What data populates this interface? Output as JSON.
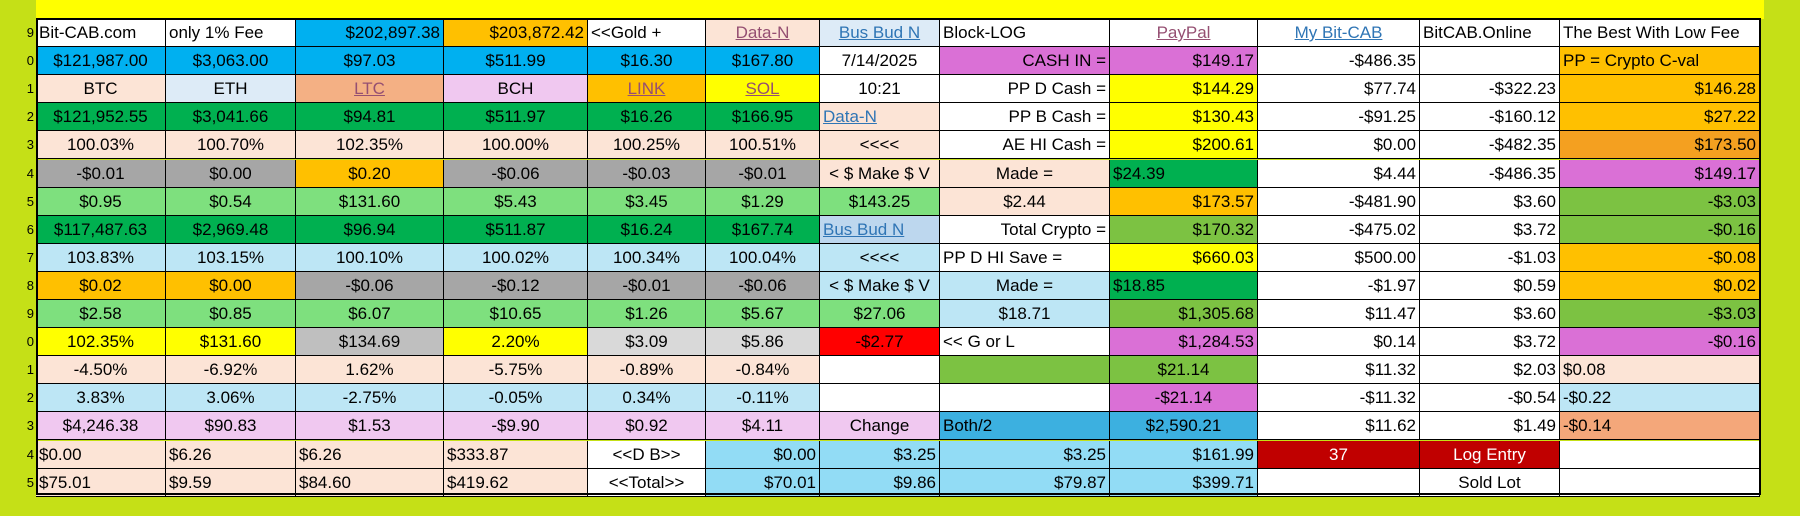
{
  "spreadsheet": {
    "row_numbers": [
      "9",
      "0",
      "1",
      "2",
      "3",
      "4",
      "5",
      "6",
      "7",
      "8",
      "9",
      "0",
      "1",
      "2",
      "3",
      "4",
      "5"
    ],
    "rows": [
      [
        {
          "t": "Bit-CAB.com",
          "bg": "#ffffff",
          "a": "l"
        },
        {
          "t": "only 1% Fee",
          "bg": "#ffffff",
          "a": "l"
        },
        {
          "t": "$202,897.38",
          "bg": "#00b0f0",
          "a": "r"
        },
        {
          "t": "$203,872.42",
          "bg": "#ffc000",
          "a": "r"
        },
        {
          "t": "<<Gold +",
          "bg": "#ffffff",
          "a": "l"
        },
        {
          "t": "Data-N",
          "bg": "#fce4d6",
          "a": "c",
          "fg": "#954f72",
          "link": true
        },
        {
          "t": "Bus Bud N",
          "bg": "#ddebf7",
          "a": "c",
          "fg": "#2f75b5",
          "link": true
        },
        {
          "t": "Block-LOG",
          "bg": "#ffffff",
          "a": "l"
        },
        {
          "t": "PayPal",
          "bg": "#ffffff",
          "a": "c",
          "fg": "#954f72",
          "link": true
        },
        {
          "t": "My Bit-CAB",
          "bg": "#ffffff",
          "a": "c",
          "fg": "#2f75b5",
          "link": true
        },
        {
          "t": "BitCAB.Online",
          "bg": "#ffffff",
          "a": "l"
        },
        {
          "t": "The Best With Low Fee",
          "bg": "#ffffff",
          "a": "l"
        }
      ],
      [
        {
          "t": "$121,987.00",
          "bg": "#00b0f0",
          "a": "c"
        },
        {
          "t": "$3,063.00",
          "bg": "#00b0f0",
          "a": "c"
        },
        {
          "t": "$97.03",
          "bg": "#00b0f0",
          "a": "c"
        },
        {
          "t": "$511.99",
          "bg": "#00b0f0",
          "a": "c"
        },
        {
          "t": "$16.30",
          "bg": "#00b0f0",
          "a": "c"
        },
        {
          "t": "$167.80",
          "bg": "#00b0f0",
          "a": "c"
        },
        {
          "t": "7/14/2025",
          "bg": "#ffffff",
          "a": "c"
        },
        {
          "t": "CASH IN =",
          "bg": "#da70d6",
          "a": "r"
        },
        {
          "t": "$149.17",
          "bg": "#da70d6",
          "a": "r"
        },
        {
          "t": "-$486.35",
          "bg": "#ffffff",
          "a": "r"
        },
        {
          "t": "",
          "bg": "#ffffff",
          "a": "r"
        },
        {
          "t": "PP = Crypto C-val",
          "bg": "#ffc000",
          "a": "l"
        }
      ],
      [
        {
          "t": "BTC",
          "bg": "#fce4d6",
          "a": "c"
        },
        {
          "t": "ETH",
          "bg": "#ddebf7",
          "a": "c"
        },
        {
          "t": "LTC",
          "bg": "#f4b084",
          "a": "c",
          "fg": "#954f72",
          "link": true
        },
        {
          "t": "BCH",
          "bg": "#f0c8f0",
          "a": "c"
        },
        {
          "t": "LINK",
          "bg": "#ffc000",
          "a": "c",
          "fg": "#954f72",
          "link": true
        },
        {
          "t": "SOL",
          "bg": "#ffff00",
          "a": "c",
          "fg": "#954f72",
          "link": true
        },
        {
          "t": "10:21",
          "bg": "#ffffff",
          "a": "c"
        },
        {
          "t": "PP  D  Cash =",
          "bg": "#ffffff",
          "a": "r"
        },
        {
          "t": "$144.29",
          "bg": "#ffff00",
          "a": "r"
        },
        {
          "t": "$77.74",
          "bg": "#ffffff",
          "a": "r"
        },
        {
          "t": "-$322.23",
          "bg": "#ffffff",
          "a": "r"
        },
        {
          "t": "$146.28",
          "bg": "#ffc000",
          "a": "r"
        }
      ],
      [
        {
          "t": "$121,952.55",
          "bg": "#00b050",
          "a": "c"
        },
        {
          "t": "$3,041.66",
          "bg": "#00b050",
          "a": "c"
        },
        {
          "t": "$94.81",
          "bg": "#00b050",
          "a": "c"
        },
        {
          "t": "$511.97",
          "bg": "#00b050",
          "a": "c"
        },
        {
          "t": "$16.26",
          "bg": "#00b050",
          "a": "c"
        },
        {
          "t": "$166.95",
          "bg": "#00b050",
          "a": "c"
        },
        {
          "t": "Data-N",
          "bg": "#fce4d6",
          "a": "l",
          "fg": "#2f75b5",
          "link": true
        },
        {
          "t": "PP  B  Cash =",
          "bg": "#ffffff",
          "a": "r"
        },
        {
          "t": "$130.43",
          "bg": "#ffff00",
          "a": "r"
        },
        {
          "t": "-$91.25",
          "bg": "#ffffff",
          "a": "r"
        },
        {
          "t": "-$160.12",
          "bg": "#ffffff",
          "a": "r"
        },
        {
          "t": "$27.22",
          "bg": "#ffc000",
          "a": "r"
        }
      ],
      [
        {
          "t": "100.03%",
          "bg": "#fce4d6",
          "a": "c"
        },
        {
          "t": "100.70%",
          "bg": "#fce4d6",
          "a": "c"
        },
        {
          "t": "102.35%",
          "bg": "#fce4d6",
          "a": "c"
        },
        {
          "t": "100.00%",
          "bg": "#fce4d6",
          "a": "c"
        },
        {
          "t": "100.25%",
          "bg": "#fce4d6",
          "a": "c"
        },
        {
          "t": "100.51%",
          "bg": "#fce4d6",
          "a": "c"
        },
        {
          "t": "<<<<",
          "bg": "#fce4d6",
          "a": "c"
        },
        {
          "t": "AE HI Cash =",
          "bg": "#ffffff",
          "a": "r"
        },
        {
          "t": "$200.61",
          "bg": "#ffff00",
          "a": "r"
        },
        {
          "t": "$0.00",
          "bg": "#ffffff",
          "a": "r"
        },
        {
          "t": "-$482.35",
          "bg": "#ffffff",
          "a": "r"
        },
        {
          "t": "$173.50",
          "bg": "#f4a020",
          "a": "r"
        }
      ],
      [
        {
          "t": "-$0.01",
          "bg": "#a6a6a6",
          "a": "c"
        },
        {
          "t": "$0.00",
          "bg": "#a6a6a6",
          "a": "c"
        },
        {
          "t": "$0.20",
          "bg": "#ffc000",
          "a": "c"
        },
        {
          "t": "-$0.06",
          "bg": "#a6a6a6",
          "a": "c"
        },
        {
          "t": "-$0.03",
          "bg": "#a6a6a6",
          "a": "c"
        },
        {
          "t": "-$0.01",
          "bg": "#a6a6a6",
          "a": "c"
        },
        {
          "t": "< $ Make $ V",
          "bg": "#fce4d6",
          "a": "c"
        },
        {
          "t": "Made =",
          "bg": "#fce4d6",
          "a": "c"
        },
        {
          "t": "$24.39",
          "bg": "#00b050",
          "a": "l"
        },
        {
          "t": "$4.44",
          "bg": "#ffffff",
          "a": "r"
        },
        {
          "t": "-$486.35",
          "bg": "#ffffff",
          "a": "r"
        },
        {
          "t": "$149.17",
          "bg": "#da70d6",
          "a": "r"
        }
      ],
      [
        {
          "t": "$0.95",
          "bg": "#7ee07e",
          "a": "c"
        },
        {
          "t": "$0.54",
          "bg": "#7ee07e",
          "a": "c"
        },
        {
          "t": "$131.60",
          "bg": "#7ee07e",
          "a": "c"
        },
        {
          "t": "$5.43",
          "bg": "#7ee07e",
          "a": "c"
        },
        {
          "t": "$3.45",
          "bg": "#7ee07e",
          "a": "c"
        },
        {
          "t": "$1.29",
          "bg": "#7ee07e",
          "a": "c"
        },
        {
          "t": "$143.25",
          "bg": "#7ee07e",
          "a": "c"
        },
        {
          "t": "$2.44",
          "bg": "#fce4d6",
          "a": "c"
        },
        {
          "t": "$173.57",
          "bg": "#ffc000",
          "a": "r"
        },
        {
          "t": "-$481.90",
          "bg": "#ffffff",
          "a": "r"
        },
        {
          "t": "$3.60",
          "bg": "#ffffff",
          "a": "r"
        },
        {
          "t": "-$3.03",
          "bg": "#7cc242",
          "a": "r"
        }
      ],
      [
        {
          "t": "$117,487.63",
          "bg": "#00b050",
          "a": "c"
        },
        {
          "t": "$2,969.48",
          "bg": "#00b050",
          "a": "c"
        },
        {
          "t": "$96.94",
          "bg": "#00b050",
          "a": "c"
        },
        {
          "t": "$511.87",
          "bg": "#00b050",
          "a": "c"
        },
        {
          "t": "$16.24",
          "bg": "#00b050",
          "a": "c"
        },
        {
          "t": "$167.74",
          "bg": "#00b050",
          "a": "c"
        },
        {
          "t": "Bus Bud N",
          "bg": "#bdd7ee",
          "a": "l",
          "fg": "#2f75b5",
          "link": true
        },
        {
          "t": "Total Crypto =",
          "bg": "#ffffff",
          "a": "r"
        },
        {
          "t": "$170.32",
          "bg": "#7cc242",
          "a": "r"
        },
        {
          "t": "-$475.02",
          "bg": "#ffffff",
          "a": "r"
        },
        {
          "t": "$3.72",
          "bg": "#ffffff",
          "a": "r"
        },
        {
          "t": "-$0.16",
          "bg": "#7cc242",
          "a": "r"
        }
      ],
      [
        {
          "t": "103.83%",
          "bg": "#bde6f5",
          "a": "c"
        },
        {
          "t": "103.15%",
          "bg": "#bde6f5",
          "a": "c"
        },
        {
          "t": "100.10%",
          "bg": "#bde6f5",
          "a": "c"
        },
        {
          "t": "100.02%",
          "bg": "#bde6f5",
          "a": "c"
        },
        {
          "t": "100.34%",
          "bg": "#bde6f5",
          "a": "c"
        },
        {
          "t": "100.04%",
          "bg": "#bde6f5",
          "a": "c"
        },
        {
          "t": "<<<<",
          "bg": "#bde6f5",
          "a": "c"
        },
        {
          "t": "PP D HI Save =",
          "bg": "#ffffff",
          "a": "l"
        },
        {
          "t": "$660.03",
          "bg": "#ffff00",
          "a": "r"
        },
        {
          "t": "$500.00",
          "bg": "#ffffff",
          "a": "r"
        },
        {
          "t": "-$1.03",
          "bg": "#ffffff",
          "a": "r"
        },
        {
          "t": "-$0.08",
          "bg": "#ffc000",
          "a": "r"
        }
      ],
      [
        {
          "t": "$0.02",
          "bg": "#ffc000",
          "a": "c"
        },
        {
          "t": "$0.00",
          "bg": "#ffc000",
          "a": "c"
        },
        {
          "t": "-$0.06",
          "bg": "#a6a6a6",
          "a": "c"
        },
        {
          "t": "-$0.12",
          "bg": "#a6a6a6",
          "a": "c"
        },
        {
          "t": "-$0.01",
          "bg": "#a6a6a6",
          "a": "c"
        },
        {
          "t": "-$0.06",
          "bg": "#a6a6a6",
          "a": "c"
        },
        {
          "t": "< $ Make $ V",
          "bg": "#bde6f5",
          "a": "c"
        },
        {
          "t": "Made =",
          "bg": "#bde6f5",
          "a": "c"
        },
        {
          "t": "$18.85",
          "bg": "#00b050",
          "a": "l"
        },
        {
          "t": "-$1.97",
          "bg": "#ffffff",
          "a": "r"
        },
        {
          "t": "$0.59",
          "bg": "#ffffff",
          "a": "r"
        },
        {
          "t": "$0.02",
          "bg": "#ffc000",
          "a": "r"
        }
      ],
      [
        {
          "t": "$2.58",
          "bg": "#7ee07e",
          "a": "c"
        },
        {
          "t": "$0.85",
          "bg": "#7ee07e",
          "a": "c"
        },
        {
          "t": "$6.07",
          "bg": "#7ee07e",
          "a": "c"
        },
        {
          "t": "$10.65",
          "bg": "#7ee07e",
          "a": "c"
        },
        {
          "t": "$1.26",
          "bg": "#7ee07e",
          "a": "c"
        },
        {
          "t": "$5.67",
          "bg": "#7ee07e",
          "a": "c"
        },
        {
          "t": "$27.06",
          "bg": "#7ee07e",
          "a": "c"
        },
        {
          "t": "$18.71",
          "bg": "#bde6f5",
          "a": "c"
        },
        {
          "t": "$1,305.68",
          "bg": "#7cc242",
          "a": "r"
        },
        {
          "t": "$11.47",
          "bg": "#ffffff",
          "a": "r"
        },
        {
          "t": "$3.60",
          "bg": "#ffffff",
          "a": "r"
        },
        {
          "t": "-$3.03",
          "bg": "#7cc242",
          "a": "r"
        }
      ],
      [
        {
          "t": "102.35%",
          "bg": "#ffff00",
          "a": "c"
        },
        {
          "t": "$131.60",
          "bg": "#ffff00",
          "a": "c"
        },
        {
          "t": "$134.69",
          "bg": "#bfbfbf",
          "a": "c"
        },
        {
          "t": "2.20%",
          "bg": "#ffff00",
          "a": "c"
        },
        {
          "t": "$3.09",
          "bg": "#d9d9d9",
          "a": "c"
        },
        {
          "t": "$5.86",
          "bg": "#d9d9d9",
          "a": "c"
        },
        {
          "t": "-$2.77",
          "bg": "#ff0000",
          "a": "c"
        },
        {
          "t": "<< G or L",
          "bg": "#ffffff",
          "a": "l"
        },
        {
          "t": "$1,284.53",
          "bg": "#da70d6",
          "a": "r"
        },
        {
          "t": "$0.14",
          "bg": "#ffffff",
          "a": "r"
        },
        {
          "t": "$3.72",
          "bg": "#ffffff",
          "a": "r"
        },
        {
          "t": "-$0.16",
          "bg": "#da70d6",
          "a": "r"
        }
      ],
      [
        {
          "t": "-4.50%",
          "bg": "#fce4d6",
          "a": "c"
        },
        {
          "t": "-6.92%",
          "bg": "#fce4d6",
          "a": "c"
        },
        {
          "t": "1.62%",
          "bg": "#fce4d6",
          "a": "c"
        },
        {
          "t": "-5.75%",
          "bg": "#fce4d6",
          "a": "c"
        },
        {
          "t": "-0.89%",
          "bg": "#fce4d6",
          "a": "c"
        },
        {
          "t": "-0.84%",
          "bg": "#fce4d6",
          "a": "c"
        },
        {
          "t": "",
          "bg": "#ffffff",
          "a": "c"
        },
        {
          "t": "",
          "bg": "#7cc242",
          "a": "c"
        },
        {
          "t": "$21.14",
          "bg": "#7cc242",
          "a": "c"
        },
        {
          "t": "$11.32",
          "bg": "#ffffff",
          "a": "r"
        },
        {
          "t": "$2.03",
          "bg": "#ffffff",
          "a": "r"
        },
        {
          "t": "$0.08",
          "bg": "#fce4d6",
          "a": "l"
        }
      ],
      [
        {
          "t": "3.83%",
          "bg": "#bde6f5",
          "a": "c"
        },
        {
          "t": "3.06%",
          "bg": "#bde6f5",
          "a": "c"
        },
        {
          "t": "-2.75%",
          "bg": "#bde6f5",
          "a": "c"
        },
        {
          "t": "-0.05%",
          "bg": "#bde6f5",
          "a": "c"
        },
        {
          "t": "0.34%",
          "bg": "#bde6f5",
          "a": "c"
        },
        {
          "t": "-0.11%",
          "bg": "#bde6f5",
          "a": "c"
        },
        {
          "t": "",
          "bg": "#ffffff",
          "a": "c"
        },
        {
          "t": "",
          "bg": "#ffffff",
          "a": "c"
        },
        {
          "t": "-$21.14",
          "bg": "#da70d6",
          "a": "c"
        },
        {
          "t": "-$11.32",
          "bg": "#ffffff",
          "a": "r"
        },
        {
          "t": "-$0.54",
          "bg": "#ffffff",
          "a": "r"
        },
        {
          "t": "-$0.22",
          "bg": "#bde6f5",
          "a": "l"
        }
      ],
      [
        {
          "t": "$4,246.38",
          "bg": "#f0c8f0",
          "a": "c"
        },
        {
          "t": "$90.83",
          "bg": "#f0c8f0",
          "a": "c"
        },
        {
          "t": "$1.53",
          "bg": "#f0c8f0",
          "a": "c"
        },
        {
          "t": "-$9.90",
          "bg": "#f0c8f0",
          "a": "c"
        },
        {
          "t": "$0.92",
          "bg": "#f0c8f0",
          "a": "c"
        },
        {
          "t": "$4.11",
          "bg": "#f0c8f0",
          "a": "c"
        },
        {
          "t": "Change",
          "bg": "#f0c8f0",
          "a": "c"
        },
        {
          "t": "Both/2",
          "bg": "#3cb0e0",
          "a": "l"
        },
        {
          "t": "$2,590.21",
          "bg": "#3cb0e0",
          "a": "c"
        },
        {
          "t": "$11.62",
          "bg": "#ffffff",
          "a": "r"
        },
        {
          "t": "$1.49",
          "bg": "#ffffff",
          "a": "r"
        },
        {
          "t": "-$0.14",
          "bg": "#f4a77a",
          "a": "l"
        }
      ],
      [
        {
          "t": "$0.00",
          "bg": "#fce4d6",
          "a": "l"
        },
        {
          "t": "$6.26",
          "bg": "#fce4d6",
          "a": "l"
        },
        {
          "t": "$6.26",
          "bg": "#fce4d6",
          "a": "l"
        },
        {
          "t": "$333.87",
          "bg": "#fce4d6",
          "a": "l"
        },
        {
          "t": "<<D  B>>",
          "bg": "#ffffff",
          "a": "c"
        },
        {
          "t": "$0.00",
          "bg": "#92dcf5",
          "a": "r"
        },
        {
          "t": "$3.25",
          "bg": "#92dcf5",
          "a": "r"
        },
        {
          "t": "$3.25",
          "bg": "#92dcf5",
          "a": "r"
        },
        {
          "t": "$161.99",
          "bg": "#92dcf5",
          "a": "r"
        },
        {
          "t": "37",
          "bg": "#c00000",
          "a": "c",
          "fg": "#ffffff"
        },
        {
          "t": "Log Entry",
          "bg": "#c00000",
          "a": "c",
          "fg": "#ffffff"
        },
        {
          "t": "",
          "bg": "#ffffff",
          "a": "c"
        }
      ],
      [
        {
          "t": "$75.01",
          "bg": "#fce4d6",
          "a": "l"
        },
        {
          "t": "$9.59",
          "bg": "#fce4d6",
          "a": "l"
        },
        {
          "t": "$84.60",
          "bg": "#fce4d6",
          "a": "l"
        },
        {
          "t": "$419.62",
          "bg": "#fce4d6",
          "a": "l"
        },
        {
          "t": "<<Total>>",
          "bg": "#ffffff",
          "a": "c"
        },
        {
          "t": "$70.01",
          "bg": "#92dcf5",
          "a": "r"
        },
        {
          "t": "$9.86",
          "bg": "#92dcf5",
          "a": "r"
        },
        {
          "t": "$79.87",
          "bg": "#92dcf5",
          "a": "r"
        },
        {
          "t": "$399.71",
          "bg": "#92dcf5",
          "a": "r"
        },
        {
          "t": "",
          "bg": "#ffffff",
          "a": "c"
        },
        {
          "t": "Sold Lot",
          "bg": "#ffffff",
          "a": "c"
        },
        {
          "t": "",
          "bg": "#ffffff",
          "a": "c"
        }
      ]
    ]
  }
}
